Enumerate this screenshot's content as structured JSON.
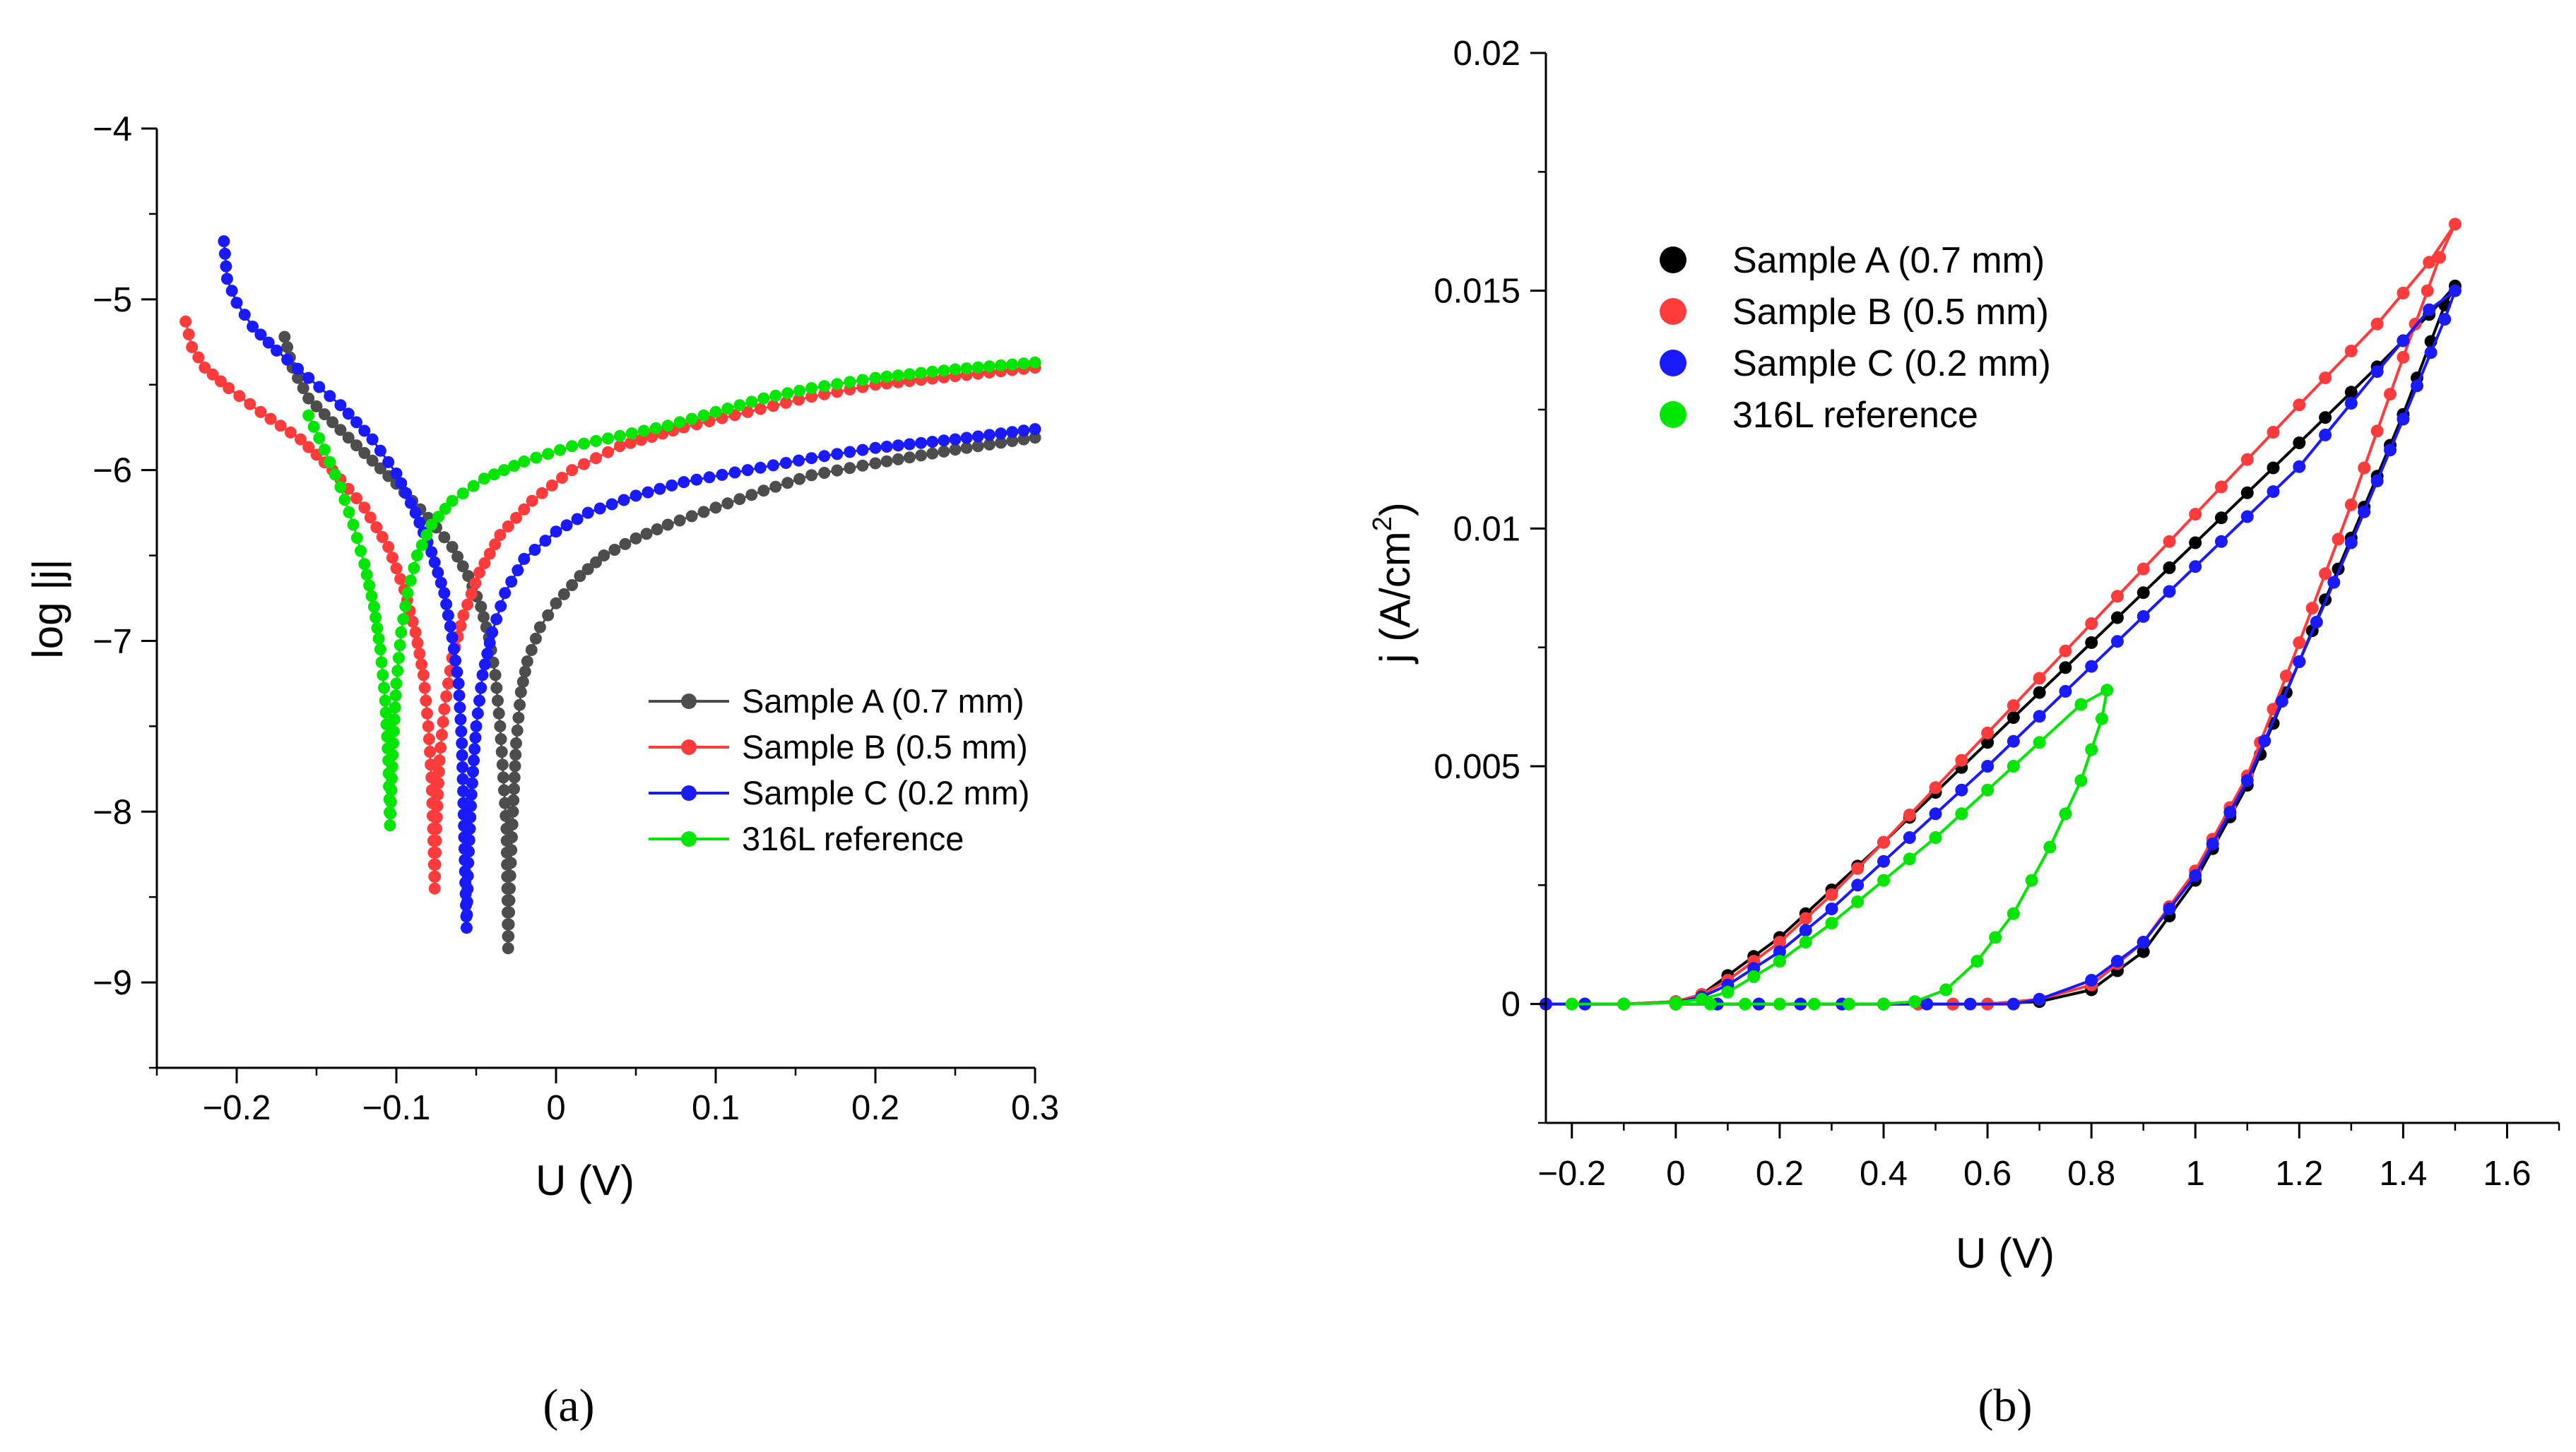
{
  "chart_data": [
    {
      "type": "line",
      "panel_label": "(a)",
      "xlabel": "U (V)",
      "ylabel": "log |j|",
      "xlim": [
        -0.25,
        0.3
      ],
      "ylim": [
        -9.5,
        -4
      ],
      "x_ticks": [
        -0.2,
        -0.1,
        0,
        0.1,
        0.2,
        0.3
      ],
      "x_tick_labels": [
        "−0.2",
        "−0.1",
        "0",
        "0.1",
        "0.2",
        "0.3"
      ],
      "y_ticks": [
        -9,
        -8,
        -7,
        -6,
        -5,
        -4
      ],
      "y_tick_labels": [
        "−9",
        "−8",
        "−7",
        "−6",
        "−5",
        "−4"
      ],
      "legend_position": "right-center",
      "series": [
        {
          "name": "Sample A (0.7 mm)",
          "color": "#4d4d4d",
          "points": [
            [
              -0.17,
              -5.22
            ],
            [
              -0.165,
              -5.4
            ],
            [
              -0.155,
              -5.58
            ],
            [
              -0.14,
              -5.72
            ],
            [
              -0.12,
              -5.9
            ],
            [
              -0.1,
              -6.08
            ],
            [
              -0.08,
              -6.28
            ],
            [
              -0.065,
              -6.45
            ],
            [
              -0.055,
              -6.62
            ],
            [
              -0.047,
              -6.8
            ],
            [
              -0.042,
              -6.98
            ],
            [
              -0.038,
              -7.2
            ],
            [
              -0.035,
              -7.5
            ],
            [
              -0.033,
              -7.8
            ],
            [
              -0.031,
              -8.1
            ],
            [
              -0.0305,
              -8.45
            ],
            [
              -0.03,
              -8.8
            ],
            [
              -0.029,
              -8.45
            ],
            [
              -0.027,
              -8.0
            ],
            [
              -0.025,
              -7.6
            ],
            [
              -0.022,
              -7.3
            ],
            [
              -0.018,
              -7.12
            ],
            [
              -0.01,
              -6.92
            ],
            [
              0.0,
              -6.78
            ],
            [
              0.015,
              -6.62
            ],
            [
              0.03,
              -6.5
            ],
            [
              0.05,
              -6.4
            ],
            [
              0.07,
              -6.32
            ],
            [
              0.1,
              -6.22
            ],
            [
              0.13,
              -6.12
            ],
            [
              0.16,
              -6.03
            ],
            [
              0.2,
              -5.96
            ],
            [
              0.25,
              -5.88
            ],
            [
              0.3,
              -5.81
            ]
          ]
        },
        {
          "name": "Sample B (0.5 mm)",
          "color": "#ff3b3b",
          "points": [
            [
              -0.232,
              -5.13
            ],
            [
              -0.228,
              -5.28
            ],
            [
              -0.22,
              -5.4
            ],
            [
              -0.205,
              -5.52
            ],
            [
              -0.185,
              -5.66
            ],
            [
              -0.16,
              -5.82
            ],
            [
              -0.14,
              -6.0
            ],
            [
              -0.12,
              -6.22
            ],
            [
              -0.105,
              -6.45
            ],
            [
              -0.095,
              -6.7
            ],
            [
              -0.088,
              -6.95
            ],
            [
              -0.083,
              -7.2
            ],
            [
              -0.08,
              -7.5
            ],
            [
              -0.078,
              -7.8
            ],
            [
              -0.077,
              -8.1
            ],
            [
              -0.076,
              -8.45
            ],
            [
              -0.075,
              -8.1
            ],
            [
              -0.073,
              -7.7
            ],
            [
              -0.07,
              -7.4
            ],
            [
              -0.065,
              -7.1
            ],
            [
              -0.058,
              -6.85
            ],
            [
              -0.048,
              -6.6
            ],
            [
              -0.035,
              -6.38
            ],
            [
              -0.015,
              -6.18
            ],
            [
              0.01,
              -6.0
            ],
            [
              0.04,
              -5.86
            ],
            [
              0.08,
              -5.75
            ],
            [
              0.12,
              -5.66
            ],
            [
              0.16,
              -5.57
            ],
            [
              0.2,
              -5.5
            ],
            [
              0.25,
              -5.45
            ],
            [
              0.3,
              -5.4
            ]
          ]
        },
        {
          "name": "Sample C (0.2 mm)",
          "color": "#1a1aff",
          "points": [
            [
              -0.208,
              -4.66
            ],
            [
              -0.206,
              -4.88
            ],
            [
              -0.2,
              -5.02
            ],
            [
              -0.19,
              -5.16
            ],
            [
              -0.175,
              -5.3
            ],
            [
              -0.155,
              -5.46
            ],
            [
              -0.135,
              -5.62
            ],
            [
              -0.115,
              -5.82
            ],
            [
              -0.1,
              -6.02
            ],
            [
              -0.088,
              -6.25
            ],
            [
              -0.078,
              -6.48
            ],
            [
              -0.07,
              -6.72
            ],
            [
              -0.065,
              -6.98
            ],
            [
              -0.061,
              -7.25
            ],
            [
              -0.059,
              -7.6
            ],
            [
              -0.058,
              -7.95
            ],
            [
              -0.057,
              -8.35
            ],
            [
              -0.056,
              -8.68
            ],
            [
              -0.055,
              -8.3
            ],
            [
              -0.053,
              -7.9
            ],
            [
              -0.05,
              -7.5
            ],
            [
              -0.046,
              -7.2
            ],
            [
              -0.04,
              -6.95
            ],
            [
              -0.032,
              -6.72
            ],
            [
              -0.02,
              -6.52
            ],
            [
              0.0,
              -6.36
            ],
            [
              0.02,
              -6.25
            ],
            [
              0.05,
              -6.15
            ],
            [
              0.08,
              -6.07
            ],
            [
              0.12,
              -6.0
            ],
            [
              0.16,
              -5.93
            ],
            [
              0.2,
              -5.87
            ],
            [
              0.25,
              -5.82
            ],
            [
              0.3,
              -5.76
            ]
          ]
        },
        {
          "name": "316L reference",
          "color": "#00e600",
          "points": [
            [
              -0.155,
              -5.68
            ],
            [
              -0.145,
              -5.88
            ],
            [
              -0.135,
              -6.1
            ],
            [
              -0.127,
              -6.32
            ],
            [
              -0.12,
              -6.55
            ],
            [
              -0.114,
              -6.8
            ],
            [
              -0.11,
              -7.05
            ],
            [
              -0.107,
              -7.35
            ],
            [
              -0.105,
              -7.7
            ],
            [
              -0.104,
              -8.08
            ],
            [
              -0.102,
              -7.6
            ],
            [
              -0.1,
              -7.25
            ],
            [
              -0.097,
              -6.95
            ],
            [
              -0.093,
              -6.72
            ],
            [
              -0.087,
              -6.5
            ],
            [
              -0.078,
              -6.32
            ],
            [
              -0.065,
              -6.18
            ],
            [
              -0.045,
              -6.05
            ],
            [
              -0.02,
              -5.95
            ],
            [
              0.01,
              -5.86
            ],
            [
              0.04,
              -5.8
            ],
            [
              0.07,
              -5.74
            ],
            [
              0.1,
              -5.66
            ],
            [
              0.13,
              -5.58
            ],
            [
              0.16,
              -5.52
            ],
            [
              0.2,
              -5.46
            ],
            [
              0.25,
              -5.41
            ],
            [
              0.3,
              -5.37
            ]
          ]
        }
      ]
    },
    {
      "type": "line",
      "panel_label": "(b)",
      "xlabel": "U (V)",
      "ylabel": "j (A/cm²)",
      "ylabel_main": "j (A/cm",
      "ylabel_sup": "2",
      "ylabel_end": ")",
      "xlim": [
        -0.25,
        1.7
      ],
      "ylim": [
        -0.0025,
        0.02
      ],
      "x_ticks": [
        -0.2,
        0,
        0.2,
        0.4,
        0.6,
        0.8,
        1,
        1.2,
        1.4,
        1.6
      ],
      "x_tick_labels": [
        "−0.2",
        "0",
        "0.2",
        "0.4",
        "0.6",
        "0.8",
        "1",
        "1.2",
        "1.4",
        "1.6"
      ],
      "y_ticks": [
        0,
        0.005,
        0.01,
        0.015,
        0.02
      ],
      "y_tick_labels": [
        "0",
        "0.005",
        "0.01",
        "0.015",
        "0.02"
      ],
      "legend_position": "top-left",
      "series": [
        {
          "name": "Sample A (0.7 mm)",
          "color": "#000000",
          "points": [
            [
              -0.25,
              0
            ],
            [
              -0.1,
              0
            ],
            [
              0.0,
              5e-05
            ],
            [
              0.05,
              0.0002
            ],
            [
              0.1,
              0.0006
            ],
            [
              0.2,
              0.0014
            ],
            [
              0.3,
              0.0024
            ],
            [
              0.4,
              0.0034
            ],
            [
              0.6,
              0.0055
            ],
            [
              0.8,
              0.0076
            ],
            [
              1.0,
              0.0097
            ],
            [
              1.2,
              0.0118
            ],
            [
              1.35,
              0.0134
            ],
            [
              1.45,
              0.0145
            ],
            [
              1.5,
              0.0151
            ],
            [
              1.48,
              0.0147
            ],
            [
              1.4,
              0.0124
            ],
            [
              1.3,
              0.0098
            ],
            [
              1.2,
              0.0072
            ],
            [
              1.1,
              0.0046
            ],
            [
              1.0,
              0.0026
            ],
            [
              0.9,
              0.0011
            ],
            [
              0.8,
              0.0003
            ],
            [
              0.7,
              5e-05
            ],
            [
              0.6,
              0
            ],
            [
              0.4,
              0
            ],
            [
              0.0,
              0
            ]
          ]
        },
        {
          "name": "Sample B (0.5 mm)",
          "color": "#ff3b3b",
          "points": [
            [
              -0.25,
              0
            ],
            [
              -0.1,
              0
            ],
            [
              0.0,
              5e-05
            ],
            [
              0.05,
              0.0002
            ],
            [
              0.1,
              0.0005
            ],
            [
              0.2,
              0.0013
            ],
            [
              0.3,
              0.0023
            ],
            [
              0.4,
              0.0034
            ],
            [
              0.6,
              0.0057
            ],
            [
              0.8,
              0.008
            ],
            [
              1.0,
              0.0103
            ],
            [
              1.2,
              0.0126
            ],
            [
              1.35,
              0.0143
            ],
            [
              1.45,
              0.0156
            ],
            [
              1.5,
              0.0164
            ],
            [
              1.47,
              0.0157
            ],
            [
              1.4,
              0.0136
            ],
            [
              1.3,
              0.0105
            ],
            [
              1.2,
              0.0076
            ],
            [
              1.1,
              0.0048
            ],
            [
              1.0,
              0.0028
            ],
            [
              0.9,
              0.0013
            ],
            [
              0.8,
              0.0004
            ],
            [
              0.7,
              0.0001
            ],
            [
              0.6,
              0
            ],
            [
              0.4,
              0
            ],
            [
              0.0,
              0
            ]
          ]
        },
        {
          "name": "Sample C (0.2 mm)",
          "color": "#1a1aff",
          "points": [
            [
              -0.25,
              0
            ],
            [
              -0.1,
              0
            ],
            [
              0.0,
              3e-05
            ],
            [
              0.05,
              0.00015
            ],
            [
              0.1,
              0.0004
            ],
            [
              0.2,
              0.0011
            ],
            [
              0.3,
              0.002
            ],
            [
              0.4,
              0.003
            ],
            [
              0.6,
              0.005
            ],
            [
              0.8,
              0.0071
            ],
            [
              1.0,
              0.0092
            ],
            [
              1.2,
              0.0113
            ],
            [
              1.35,
              0.0133
            ],
            [
              1.45,
              0.0146
            ],
            [
              1.5,
              0.015
            ],
            [
              1.48,
              0.0144
            ],
            [
              1.4,
              0.0123
            ],
            [
              1.3,
              0.0097
            ],
            [
              1.2,
              0.0072
            ],
            [
              1.1,
              0.0047
            ],
            [
              1.0,
              0.0027
            ],
            [
              0.9,
              0.0013
            ],
            [
              0.8,
              0.0005
            ],
            [
              0.7,
              0.0001
            ],
            [
              0.65,
              0
            ],
            [
              0.4,
              0
            ],
            [
              0.0,
              0
            ]
          ]
        },
        {
          "name": "316L reference",
          "color": "#00e600",
          "points": [
            [
              -0.2,
              0
            ],
            [
              -0.1,
              0
            ],
            [
              0.0,
              3e-05
            ],
            [
              0.05,
              0.0001
            ],
            [
              0.1,
              0.00025
            ],
            [
              0.2,
              0.0009
            ],
            [
              0.3,
              0.0017
            ],
            [
              0.4,
              0.0026
            ],
            [
              0.5,
              0.0035
            ],
            [
              0.6,
              0.0045
            ],
            [
              0.7,
              0.0055
            ],
            [
              0.78,
              0.0063
            ],
            [
              0.83,
              0.0066
            ],
            [
              0.82,
              0.006
            ],
            [
              0.78,
              0.0047
            ],
            [
              0.72,
              0.0033
            ],
            [
              0.65,
              0.0019
            ],
            [
              0.58,
              0.0009
            ],
            [
              0.52,
              0.0003
            ],
            [
              0.46,
              5e-05
            ],
            [
              0.4,
              0
            ],
            [
              0.2,
              0
            ],
            [
              0.0,
              0
            ]
          ]
        }
      ]
    }
  ]
}
